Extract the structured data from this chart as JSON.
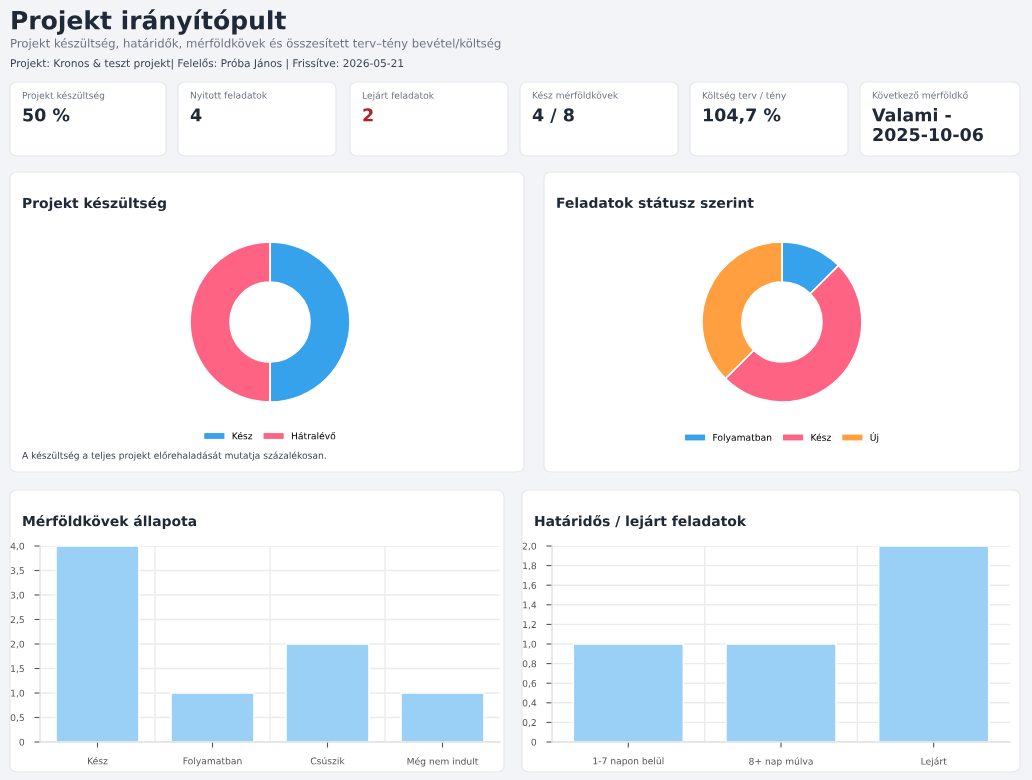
{
  "chart_data": [
    {
      "type": "other",
      "title": "Projekt irányítópult",
      "subtitle": "Projekt készültség, határidők, mérföldkövek és összesített terv–tény bevétel/költség",
      "annotations": [
        "Projekt: Kronos & teszt projekt| Felelős: Próba János | Frissítve: 2026-05-21"
      ]
    },
    {
      "type": "other",
      "title": "Projekt készültség",
      "annotations": [
        "50 %"
      ],
      "color": "#1f2937"
    },
    {
      "type": "other",
      "title": "Nyitott feladatok",
      "annotations": [
        "4"
      ],
      "color": "#1f2937"
    },
    {
      "type": "other",
      "title": "Lejárt feladatok",
      "annotations": [
        "2"
      ],
      "color": "#b91c1c"
    },
    {
      "type": "other",
      "title": "Kész mérföldkövek",
      "annotations": [
        "4 / 8"
      ],
      "color": "#1f2937"
    },
    {
      "type": "other",
      "title": "Költség terv / tény",
      "annotations": [
        "104,7 %"
      ],
      "color": "#1f2937"
    },
    {
      "type": "other",
      "title": "Következő mérföldkő",
      "annotations": [
        "Valami - 2025-10-06"
      ],
      "color": "#1f2937"
    },
    {
      "type": "donut",
      "title": "Projekt készültség",
      "categories": [
        "Kész",
        "Hátralévő"
      ],
      "values": [
        50,
        50
      ],
      "colors": [
        "#36a2eb",
        "#ff6384"
      ],
      "legend": "bottom",
      "annotations": [
        "A készültség a teljes projekt előrehaladását mutatja százalékosan."
      ]
    },
    {
      "type": "donut",
      "title": "Feladatok státusz szerint",
      "categories": [
        "Folyamatban",
        "Kész",
        "Új"
      ],
      "values": [
        12.5,
        50,
        37.5
      ],
      "colors": [
        "#36a2eb",
        "#ff6384",
        "#ff9f40"
      ],
      "legend": "bottom"
    },
    {
      "type": "bar",
      "title": "Mérföldkövek állapota",
      "categories": [
        "Kész",
        "Folyamatban",
        "Csúszik",
        "Még nem indult"
      ],
      "values": [
        4,
        1,
        2,
        1
      ],
      "color": "#9ad0f5",
      "ylim": [
        0,
        4
      ],
      "yticks": [
        0,
        {
          "value": 0.5,
          "label": "0,5"
        },
        {
          "value": 1,
          "label": "1,0"
        },
        {
          "value": 1.5,
          "label": "1,5"
        },
        {
          "value": 2,
          "label": "2,0"
        },
        {
          "value": 2.5,
          "label": "2,5"
        },
        {
          "value": 3,
          "label": "3,0"
        },
        {
          "value": 3.5,
          "label": "3,5"
        },
        {
          "value": 4,
          "label": "4,0"
        }
      ],
      "grid": true
    },
    {
      "type": "bar",
      "title": "Határidős / lejárt feladatok",
      "categories": [
        "1-7 napon belül",
        "8+ nap múlva",
        "Lejárt"
      ],
      "values": [
        1,
        1,
        2
      ],
      "color": "#9ad0f5",
      "ylim": [
        0,
        2
      ],
      "yticks": [
        0,
        {
          "value": 0.2,
          "label": "0,2"
        },
        {
          "value": 0.4,
          "label": "0,4"
        },
        {
          "value": 0.6,
          "label": "0,6"
        },
        {
          "value": 0.8,
          "label": "0,8"
        },
        {
          "value": 1,
          "label": "1,0"
        },
        {
          "value": 1.2,
          "label": "1,2"
        },
        {
          "value": 1.4,
          "label": "1,4"
        },
        {
          "value": 1.6,
          "label": "1,6"
        },
        {
          "value": 1.8,
          "label": "1,8"
        },
        {
          "value": 2,
          "label": "2,0"
        }
      ],
      "grid": true
    }
  ]
}
